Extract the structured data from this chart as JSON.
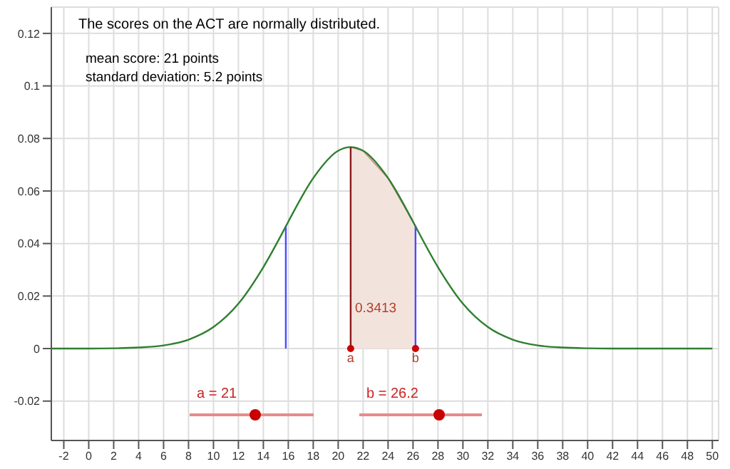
{
  "chart_data": {
    "type": "line",
    "title": "The scores on the ACT are normally distributed.",
    "annotations": [
      "mean score: 21 points",
      "standard deviation: 5.2 points",
      "a = 21",
      "b = 26.2",
      "0.3413",
      {
        "text": "a",
        "x": 21,
        "y": 0
      },
      {
        "text": "b",
        "x": 26.2,
        "y": 0
      }
    ],
    "series": [
      {
        "color": "#2f7f2f",
        "x": [
          -3,
          -2,
          0,
          2,
          4,
          6,
          8,
          10,
          12,
          14,
          15.8,
          16,
          18,
          20,
          21,
          22,
          24,
          26,
          26.2,
          28,
          30,
          32,
          34,
          36,
          38,
          40,
          42,
          44,
          46,
          48,
          50
        ],
        "values": [
          0,
          0,
          0,
          0.0001,
          0.0004,
          0.0012,
          0.0034,
          0.0082,
          0.0171,
          0.031,
          0.0465,
          0.0483,
          0.0649,
          0.0753,
          0.0767,
          0.0753,
          0.0649,
          0.0483,
          0.0465,
          0.031,
          0.0171,
          0.0082,
          0.0034,
          0.0012,
          0.0004,
          0.0001,
          0,
          0,
          0,
          0,
          0
        ]
      },
      {
        "type": "area",
        "color": "#f3e3dd",
        "x": [
          21,
          22,
          24,
          26,
          26.2
        ],
        "values": [
          0.0767,
          0.0753,
          0.0649,
          0.0483,
          0.0465
        ]
      },
      {
        "type": "line",
        "color": "#4a4aff",
        "x": [
          15.8,
          15.8
        ],
        "values": [
          0,
          0.0465
        ]
      },
      {
        "type": "line",
        "color": "#4a4aff",
        "x": [
          26.2,
          26.2
        ],
        "values": [
          0,
          0.0465
        ]
      },
      {
        "type": "line",
        "color": "#8b1a1a",
        "x": [
          21,
          21
        ],
        "values": [
          0,
          0.0767
        ]
      },
      {
        "type": "scatter",
        "color": "#cc0000",
        "x": [
          21,
          26.2
        ],
        "values": [
          0,
          0
        ]
      }
    ],
    "xlim": [
      -3,
      50.5
    ],
    "xticks": [
      -2,
      0,
      2,
      4,
      6,
      8,
      10,
      12,
      14,
      16,
      18,
      20,
      22,
      24,
      26,
      28,
      30,
      32,
      34,
      36,
      38,
      40,
      42,
      44,
      46,
      48,
      50
    ],
    "ylim": [
      -0.035,
      0.13
    ],
    "yticks": [
      -0.02,
      0,
      0.02,
      0.04,
      0.06,
      0.08,
      0.1,
      0.12
    ],
    "grid": true
  }
}
